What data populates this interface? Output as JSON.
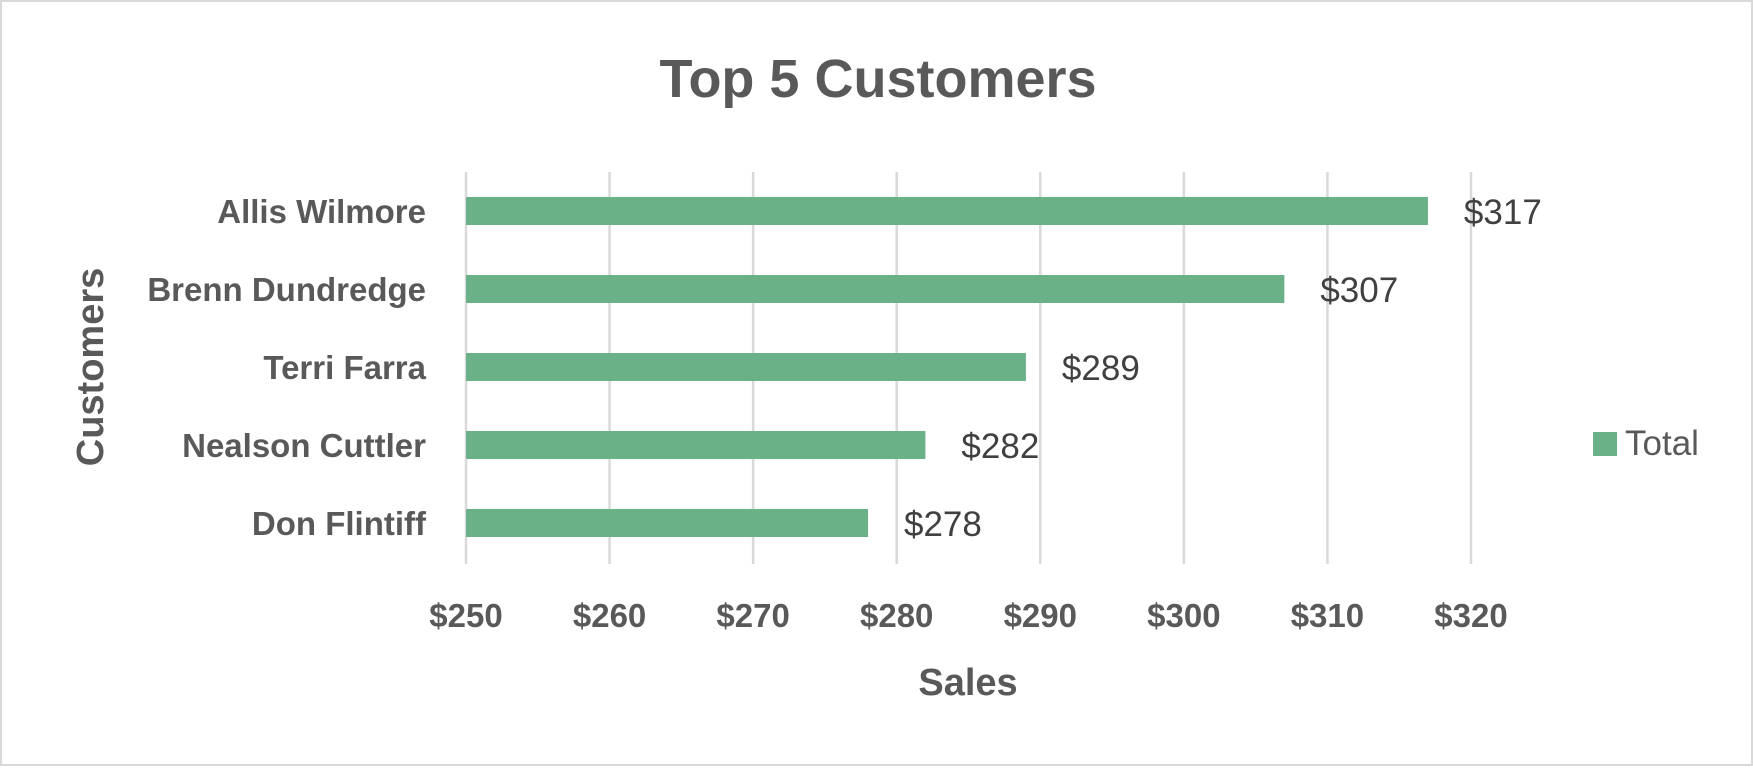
{
  "chart_data": {
    "type": "bar",
    "orientation": "horizontal",
    "title": "Top 5 Customers",
    "xlabel": "Sales",
    "ylabel": "Customers",
    "categories": [
      "Allis Wilmore",
      "Brenn Dundredge",
      "Terri Farra",
      "Nealson Cuttler",
      "Don Flintiff"
    ],
    "series": [
      {
        "name": "Total",
        "values": [
          317,
          307,
          289,
          282,
          278
        ],
        "data_labels": [
          "$317",
          "$307",
          "$289",
          "$282",
          "$278"
        ]
      }
    ],
    "xlim": [
      250,
      320
    ],
    "xticks": [
      250,
      260,
      270,
      280,
      290,
      300,
      310,
      320
    ],
    "xtick_labels": [
      "$250",
      "$260",
      "$270",
      "$280",
      "$290",
      "$300",
      "$310",
      "$320"
    ],
    "grid": "vertical",
    "legend_position": "right",
    "bar_color": "#6ab187"
  }
}
